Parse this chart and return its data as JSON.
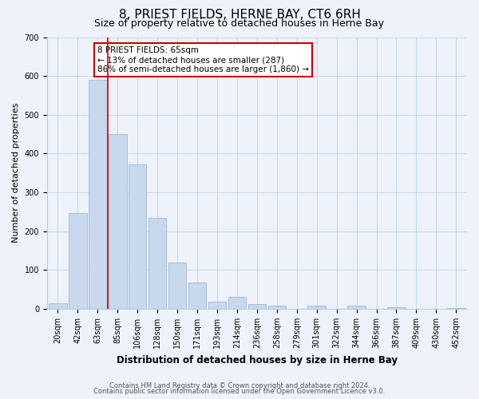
{
  "title": "8, PRIEST FIELDS, HERNE BAY, CT6 6RH",
  "subtitle": "Size of property relative to detached houses in Herne Bay",
  "xlabel": "Distribution of detached houses by size in Herne Bay",
  "ylabel": "Number of detached properties",
  "bar_labels": [
    "20sqm",
    "42sqm",
    "63sqm",
    "85sqm",
    "106sqm",
    "128sqm",
    "150sqm",
    "171sqm",
    "193sqm",
    "214sqm",
    "236sqm",
    "258sqm",
    "279sqm",
    "301sqm",
    "322sqm",
    "344sqm",
    "366sqm",
    "387sqm",
    "409sqm",
    "430sqm",
    "452sqm"
  ],
  "bar_values": [
    15,
    247,
    590,
    450,
    372,
    235,
    120,
    68,
    18,
    30,
    12,
    8,
    0,
    8,
    0,
    8,
    0,
    5,
    0,
    0,
    3
  ],
  "bar_color": "#c8d8ed",
  "bar_edge_color": "#a0b8d8",
  "vline_color": "#cc0000",
  "vline_index": 2.5,
  "ylim": [
    0,
    700
  ],
  "yticks": [
    0,
    100,
    200,
    300,
    400,
    500,
    600,
    700
  ],
  "annotation_title": "8 PRIEST FIELDS: 65sqm",
  "annotation_line1": "← 13% of detached houses are smaller (287)",
  "annotation_line2": "86% of semi-detached houses are larger (1,860) →",
  "annotation_box_color": "#ffffff",
  "annotation_box_edge": "#cc0000",
  "footer1": "Contains HM Land Registry data © Crown copyright and database right 2024.",
  "footer2": "Contains public sector information licensed under the Open Government Licence v3.0.",
  "background_color": "#eef2fa",
  "plot_background": "#eef2fa",
  "title_fontsize": 11,
  "subtitle_fontsize": 9,
  "tick_fontsize": 7,
  "ylabel_fontsize": 8,
  "xlabel_fontsize": 8.5,
  "annot_fontsize": 7.5,
  "footer_fontsize": 6
}
